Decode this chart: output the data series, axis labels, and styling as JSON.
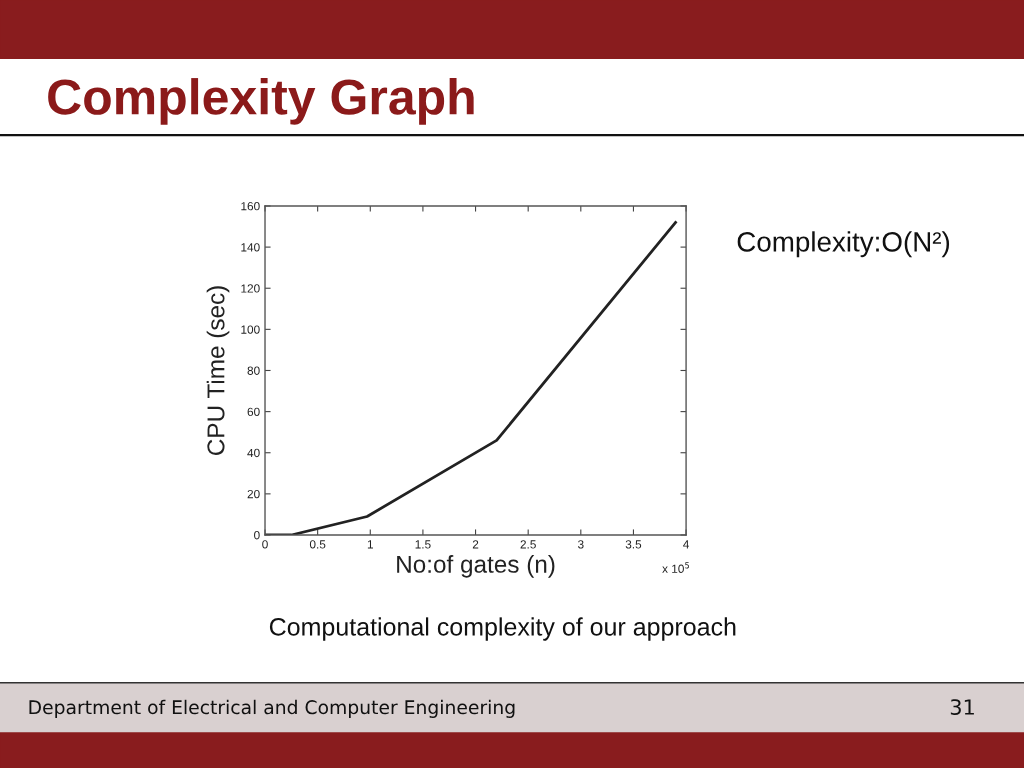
{
  "chart_data": {
    "type": "line",
    "title": "Complexity Graph",
    "xlabel": "No:of gates (n)",
    "ylabel": "CPU Time (sec)",
    "x": [
      0,
      0.25,
      0.97,
      2.2,
      3.9
    ],
    "series": [
      {
        "color": "#222222",
        "values": [
          0,
          0,
          9,
          46,
          152
        ]
      }
    ],
    "xlim": [
      0,
      4
    ],
    "ylim": [
      0,
      160
    ],
    "xticks": [
      0,
      0.5,
      1,
      1.5,
      2,
      2.5,
      3,
      3.5,
      4
    ],
    "yticks": [
      0,
      20,
      40,
      60,
      80,
      100,
      120,
      140,
      160
    ],
    "grid": false,
    "marker": "none",
    "line_style": "solid",
    "annotations": [
      "x 10$^{5}$",
      "Complexity:O(N²)",
      "Computational complexity of our approach",
      "Department of Electrical and Computer Engineering",
      "31"
    ]
  }
}
